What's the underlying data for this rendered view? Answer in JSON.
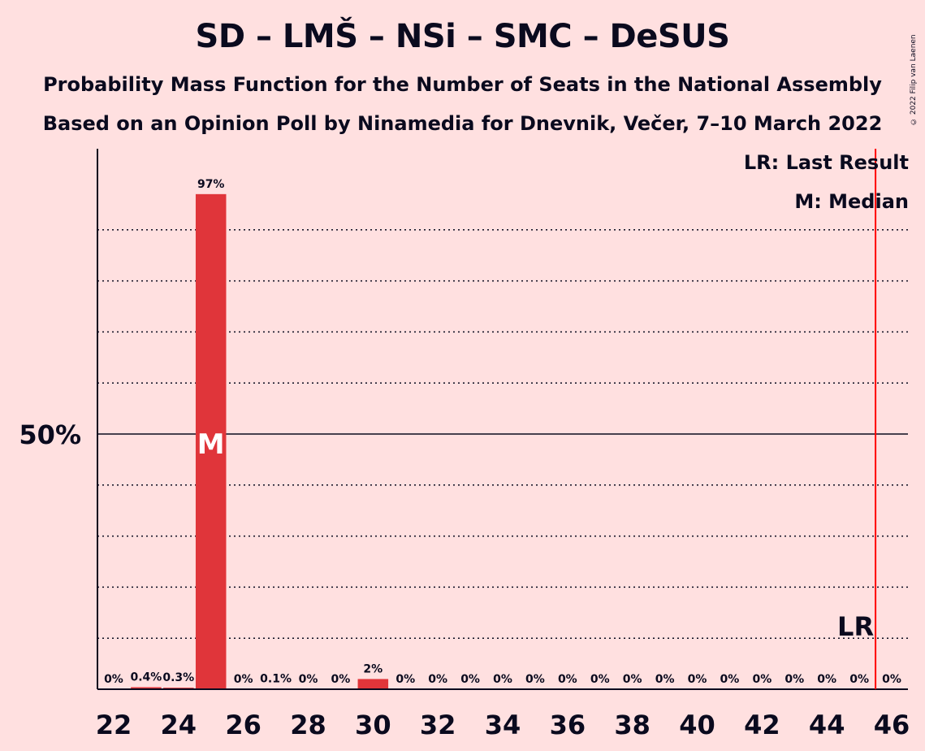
{
  "title": "SD – LMŠ – NSi – SMC – DeSUS",
  "subtitle": "Probability Mass Function for the Number of Seats in the National Assembly",
  "subtitle2": "Based on an Opinion Poll by Ninamedia for Dnevnik, Večer, 7–10 March 2022",
  "copyright": "© 2022 Filip van Laenen",
  "legend": {
    "last_result": "LR: Last Result",
    "median": "M: Median"
  },
  "colors": {
    "background": "#FFE0E0",
    "bar": "#E0353A",
    "last_result_line": "#FF0000",
    "text": "#0A0A1E"
  },
  "chart_data": {
    "type": "bar",
    "x": [
      22,
      23,
      24,
      25,
      26,
      27,
      28,
      29,
      30,
      31,
      32,
      33,
      34,
      35,
      36,
      37,
      38,
      39,
      40,
      41,
      42,
      43,
      44,
      45,
      46
    ],
    "values": [
      0,
      0.4,
      0.3,
      97,
      0,
      0.1,
      0,
      0,
      2,
      0,
      0,
      0,
      0,
      0,
      0,
      0,
      0,
      0,
      0,
      0,
      0,
      0,
      0,
      0,
      0
    ],
    "labels": [
      "0%",
      "0.4%",
      "0.3%",
      "97%",
      "0%",
      "0.1%",
      "0%",
      "0%",
      "2%",
      "0%",
      "0%",
      "0%",
      "0%",
      "0%",
      "0%",
      "0%",
      "0%",
      "0%",
      "0%",
      "0%",
      "0%",
      "0%",
      "0%",
      "0%",
      "0%"
    ],
    "x_ticks": [
      22,
      24,
      26,
      28,
      30,
      32,
      34,
      36,
      38,
      40,
      42,
      44,
      46
    ],
    "y_ticks": [
      "50%"
    ],
    "ylim": [
      0,
      105
    ],
    "grid": "dotted every 10%, solid at 50%",
    "median": 25,
    "median_label": "M",
    "last_result": 45.5,
    "last_result_label": "LR"
  }
}
